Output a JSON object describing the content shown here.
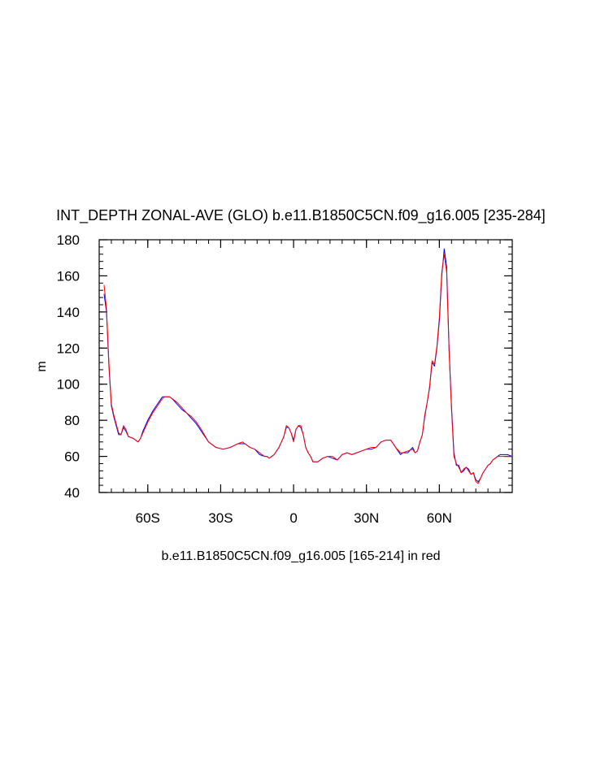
{
  "chart_data": {
    "type": "line",
    "title": "INT_DEPTH ZONAL-AVE (GLO) b.e11.B1850C5CN.f09_g16.005 [235-284]",
    "xlabel": "b.e11.B1850C5CN.f09_g16.005 [165-214] in red",
    "ylabel": "m",
    "xlim": [
      -80,
      90
    ],
    "ylim": [
      40,
      180
    ],
    "xticks": [
      {
        "value": -60,
        "label": "60S"
      },
      {
        "value": -30,
        "label": "30S"
      },
      {
        "value": 0,
        "label": "0"
      },
      {
        "value": 30,
        "label": "30N"
      },
      {
        "value": 60,
        "label": "60N"
      }
    ],
    "yticks": [
      40,
      60,
      80,
      100,
      120,
      140,
      160,
      180
    ],
    "grid": false,
    "legend": "none",
    "series": [
      {
        "color": "#0000ff",
        "x": [
          -78,
          -77,
          -76,
          -75,
          -74,
          -72,
          -71,
          -70,
          -69,
          -68,
          -66,
          -64,
          -63,
          -62,
          -60,
          -58,
          -56,
          -55,
          -54,
          -53,
          -52,
          -51,
          -50,
          -48,
          -46,
          -44,
          -42,
          -40,
          -38,
          -35,
          -32,
          -29,
          -26,
          -23,
          -21,
          -20,
          -18,
          -16,
          -14,
          -12,
          -11,
          -10,
          -9,
          -8,
          -6,
          -4,
          -3,
          -2,
          -1,
          0,
          1,
          2,
          3,
          4,
          5,
          6,
          7,
          8,
          10,
          12,
          14,
          16,
          18,
          20,
          22,
          24,
          26,
          28,
          30,
          32,
          34,
          36,
          38,
          40,
          42,
          44,
          45,
          47,
          49,
          50,
          51,
          52,
          53,
          54,
          55,
          56,
          57,
          58,
          59,
          60,
          61,
          62,
          63,
          64,
          65,
          66,
          67,
          68,
          69,
          70,
          71,
          72,
          73,
          74,
          75,
          76,
          77,
          78,
          79,
          80,
          81,
          82,
          83,
          84,
          85,
          86,
          88,
          90
        ],
        "y": [
          150,
          140,
          110,
          88,
          82,
          72,
          72,
          76,
          74,
          71,
          70,
          68,
          70,
          74,
          80,
          85,
          89,
          91,
          93,
          93,
          93,
          93,
          92,
          89,
          86,
          84,
          81,
          78,
          74,
          68,
          65,
          64,
          65,
          67,
          67,
          67,
          65,
          64,
          61,
          60,
          60,
          59,
          60,
          61,
          65,
          71,
          76,
          76,
          73,
          69,
          75,
          77,
          76,
          72,
          65,
          62,
          60,
          57,
          57,
          59,
          60,
          59,
          58,
          61,
          62,
          61,
          62,
          63,
          64,
          64,
          65,
          68,
          69,
          69,
          65,
          61,
          62,
          62,
          65,
          62,
          63,
          68,
          72,
          82,
          90,
          98,
          112,
          110,
          120,
          135,
          160,
          175,
          165,
          120,
          88,
          62,
          55,
          55,
          51,
          52,
          54,
          53,
          50,
          51,
          47,
          46,
          48,
          51,
          53,
          55,
          56,
          58,
          59,
          60,
          61,
          61,
          61,
          60
        ]
      },
      {
        "color": "#ff0000",
        "x": [
          -78,
          -77,
          -76,
          -75,
          -74,
          -72,
          -71,
          -70,
          -69,
          -68,
          -66,
          -64,
          -63,
          -62,
          -60,
          -58,
          -56,
          -55,
          -54,
          -53,
          -52,
          -51,
          -50,
          -48,
          -46,
          -44,
          -42,
          -40,
          -38,
          -35,
          -32,
          -29,
          -26,
          -23,
          -21,
          -20,
          -18,
          -16,
          -14,
          -12,
          -11,
          -10,
          -9,
          -8,
          -6,
          -4,
          -3,
          -2,
          -1,
          0,
          1,
          2,
          3,
          4,
          5,
          6,
          7,
          8,
          10,
          12,
          14,
          16,
          18,
          20,
          22,
          24,
          26,
          28,
          30,
          32,
          34,
          36,
          38,
          40,
          42,
          44,
          45,
          47,
          49,
          50,
          51,
          52,
          53,
          54,
          55,
          56,
          57,
          58,
          59,
          60,
          61,
          62,
          63,
          64,
          65,
          66,
          67,
          68,
          69,
          70,
          71,
          72,
          73,
          74,
          75,
          76,
          77,
          78,
          79,
          80,
          81,
          82,
          83,
          84,
          85,
          86,
          88,
          90
        ],
        "y": [
          155,
          142,
          112,
          89,
          83,
          73,
          72,
          77,
          75,
          71,
          70,
          68,
          70,
          73,
          79,
          84,
          88,
          90,
          92,
          93,
          93,
          93,
          92,
          90,
          87,
          84,
          82,
          79,
          75,
          68,
          65,
          64,
          65,
          67,
          68,
          67,
          65,
          64,
          62,
          60,
          60,
          59,
          60,
          61,
          65,
          71,
          77,
          76,
          73,
          68,
          75,
          77,
          77,
          72,
          65,
          62,
          60,
          57,
          57,
          59,
          60,
          60,
          58,
          61,
          62,
          61,
          62,
          63,
          64,
          65,
          65,
          68,
          69,
          69,
          65,
          62,
          62,
          63,
          64,
          62,
          63,
          68,
          72,
          83,
          90,
          99,
          113,
          111,
          121,
          137,
          162,
          172,
          162,
          118,
          86,
          60,
          56,
          54,
          51,
          53,
          54,
          52,
          50,
          51,
          46,
          45,
          48,
          51,
          53,
          55,
          56,
          58,
          59,
          60,
          60,
          60,
          60,
          60
        ]
      }
    ]
  }
}
